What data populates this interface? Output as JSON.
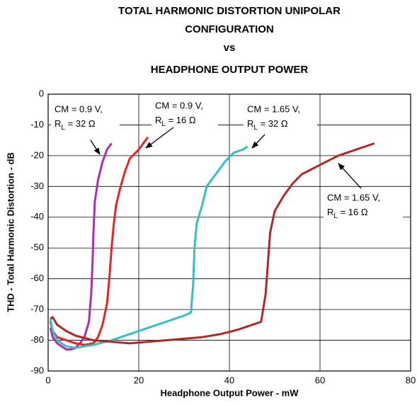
{
  "chart_data": {
    "type": "line",
    "title": [
      "TOTAL HARMONIC DISTORTION UNIPOLAR",
      "CONFIGURATION",
      "vs",
      "HEADPHONE OUTPUT POWER"
    ],
    "xlabel": "Headphone Output Power - mW",
    "ylabel": "THD - Total Harmonic Distortion - dB",
    "xlim": [
      0,
      80
    ],
    "xticks": [
      0,
      20,
      40,
      60,
      80
    ],
    "ylim": [
      -90,
      0
    ],
    "yticks": [
      0,
      -10,
      -20,
      -30,
      -40,
      -50,
      -60,
      -70,
      -80,
      -90
    ],
    "grid": true,
    "series": [
      {
        "color": "#b02cb0",
        "x": [
          0.5,
          1,
          2,
          3,
          4,
          5,
          6,
          7,
          8,
          9,
          9.5,
          9.8,
          10,
          10.3,
          11,
          12,
          13,
          14
        ],
        "values": [
          -76,
          -79,
          -81,
          -82,
          -83,
          -83,
          -82.5,
          -81,
          -79,
          -74,
          -65,
          -55,
          -45,
          -35,
          -28,
          -22,
          -18,
          -16
        ]
      },
      {
        "color": "#e82424",
        "x": [
          0.5,
          1,
          2,
          4,
          6,
          8,
          10,
          11,
          12,
          13,
          13.5,
          14,
          14.5,
          15,
          16,
          17,
          18,
          20,
          22
        ],
        "values": [
          -74,
          -77,
          -79,
          -80,
          -81,
          -81.5,
          -81,
          -79,
          -75,
          -68,
          -60,
          -50,
          -42,
          -36,
          -30,
          -25,
          -21,
          -18,
          -14
        ]
      },
      {
        "color": "#34c0c0",
        "x": [
          0.5,
          1,
          2,
          4,
          6,
          8,
          10,
          14,
          18,
          22,
          26,
          30,
          31.5,
          32,
          32.3,
          32.8,
          34,
          35,
          37,
          39,
          41,
          43,
          44
        ],
        "values": [
          -73,
          -77,
          -80,
          -82,
          -82.5,
          -82,
          -81.5,
          -80,
          -78,
          -76,
          -74,
          -72,
          -71,
          -62,
          -50,
          -42,
          -36,
          -30,
          -26,
          -22,
          -19,
          -18,
          -17
        ]
      },
      {
        "color": "#b02828",
        "x": [
          0.5,
          1,
          2,
          4,
          6,
          10,
          14,
          18,
          22,
          26,
          30,
          34,
          38,
          42,
          45,
          47,
          48,
          48.5,
          49,
          50,
          52,
          54,
          56,
          60,
          64,
          68,
          72
        ],
        "values": [
          -73,
          -72.5,
          -75,
          -77,
          -78.5,
          -80,
          -80.5,
          -81,
          -80.5,
          -80,
          -79.5,
          -79,
          -78,
          -76.5,
          -75,
          -74,
          -65,
          -55,
          -45,
          -38,
          -33,
          -29,
          -26,
          -23,
          -20,
          -18,
          -16
        ]
      }
    ],
    "annotations": [
      {
        "cm": "CM = 0.9 V,",
        "r": "R",
        "sub": "L",
        "rest": " = 32 Ω"
      },
      {
        "cm": "CM = 0.9 V,",
        "r": "R",
        "sub": "L",
        "rest": " = 16 Ω"
      },
      {
        "cm": "CM = 1.65 V,",
        "r": "R",
        "sub": "L",
        "rest": " = 32 Ω"
      },
      {
        "cm": "CM = 1.65 V,",
        "r": "R",
        "sub": "L",
        "rest": " = 16 Ω"
      }
    ]
  }
}
